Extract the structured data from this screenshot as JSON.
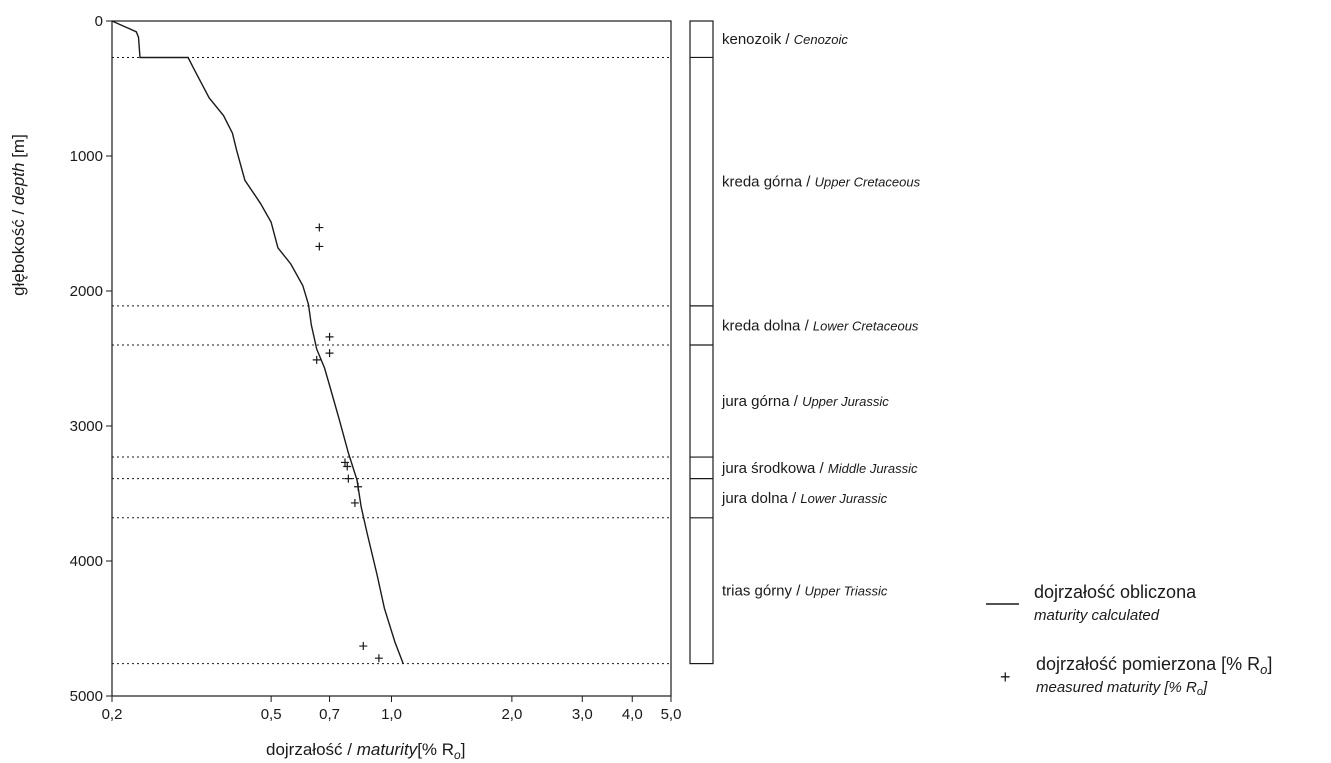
{
  "chart_data": {
    "type": "line",
    "xlabel": {
      "pl": "dojrzałość",
      "sep": " / ",
      "en": "maturity",
      "unit": "[% R",
      "unit_sub": "o",
      "unit_end": "]"
    },
    "ylabel": {
      "pl": "głębokość",
      "sep": " / ",
      "en": "depth",
      "unit": " [m]"
    },
    "x_scale": "log",
    "xlim": [
      0.2,
      5.0
    ],
    "ylim": [
      0,
      5000
    ],
    "y_inverted": true,
    "x_ticks": [
      {
        "value": 0.2,
        "label": "0,2"
      },
      {
        "value": 0.5,
        "label": "0,5"
      },
      {
        "value": 0.7,
        "label": "0,7"
      },
      {
        "value": 1.0,
        "label": "1,0"
      },
      {
        "value": 2.0,
        "label": "2,0"
      },
      {
        "value": 3.0,
        "label": "3,0"
      },
      {
        "value": 4.0,
        "label": "4,0"
      },
      {
        "value": 5.0,
        "label": "5,0"
      }
    ],
    "y_ticks": [
      {
        "value": 0,
        "label": "0"
      },
      {
        "value": 1000,
        "label": "1000"
      },
      {
        "value": 2000,
        "label": "2000"
      },
      {
        "value": 3000,
        "label": "3000"
      },
      {
        "value": 4000,
        "label": "4000"
      },
      {
        "value": 5000,
        "label": "5000"
      }
    ],
    "series": [
      {
        "name": "dojrzałość obliczona",
        "name_en": "maturity calculated",
        "kind": "line",
        "points": [
          [
            0.2,
            0
          ],
          [
            0.23,
            80
          ],
          [
            0.233,
            120
          ],
          [
            0.235,
            270
          ],
          [
            0.31,
            270
          ],
          [
            0.32,
            350
          ],
          [
            0.35,
            570
          ],
          [
            0.38,
            700
          ],
          [
            0.4,
            830
          ],
          [
            0.41,
            960
          ],
          [
            0.43,
            1180
          ],
          [
            0.47,
            1350
          ],
          [
            0.5,
            1490
          ],
          [
            0.52,
            1680
          ],
          [
            0.56,
            1800
          ],
          [
            0.6,
            1960
          ],
          [
            0.62,
            2100
          ],
          [
            0.63,
            2250
          ],
          [
            0.65,
            2430
          ],
          [
            0.68,
            2570
          ],
          [
            0.7,
            2700
          ],
          [
            0.74,
            2950
          ],
          [
            0.78,
            3200
          ],
          [
            0.82,
            3400
          ],
          [
            0.84,
            3600
          ],
          [
            0.87,
            3800
          ],
          [
            0.92,
            4100
          ],
          [
            0.96,
            4350
          ],
          [
            1.02,
            4600
          ],
          [
            1.07,
            4760
          ]
        ]
      },
      {
        "name": "dojrzałość pomierzona [% R",
        "name_sub": "o",
        "name_end": "]",
        "name_en": "measured maturity [% R",
        "name_en_sub": "o",
        "name_en_end": "]",
        "kind": "scatter",
        "points": [
          [
            0.66,
            1530
          ],
          [
            0.66,
            1670
          ],
          [
            0.7,
            2340
          ],
          [
            0.7,
            2460
          ],
          [
            0.65,
            2510
          ],
          [
            0.765,
            3270
          ],
          [
            0.775,
            3300
          ],
          [
            0.78,
            3390
          ],
          [
            0.825,
            3450
          ],
          [
            0.81,
            3570
          ],
          [
            0.85,
            4630
          ],
          [
            0.93,
            4720
          ]
        ]
      }
    ],
    "boundaries": [
      270,
      2110,
      2400,
      3230,
      3390,
      3680,
      4760
    ]
  },
  "stratigraphy": [
    {
      "pl": "kenozoik",
      "en": "Cenozoic",
      "top": 0,
      "bottom": 270
    },
    {
      "pl": "kreda górna",
      "en": "Upper Cretaceous",
      "top": 270,
      "bottom": 2110
    },
    {
      "pl": "kreda dolna",
      "en": "Lower Cretaceous",
      "top": 2110,
      "bottom": 2400
    },
    {
      "pl": "jura górna",
      "en": "Upper Jurassic",
      "top": 2400,
      "bottom": 3230
    },
    {
      "pl": "jura środkowa",
      "en": "Middle Jurassic",
      "top": 3230,
      "bottom": 3390
    },
    {
      "pl": "jura dolna",
      "en": "Lower Jurassic",
      "top": 3390,
      "bottom": 3680
    },
    {
      "pl": "trias górny",
      "en": "Upper Triassic",
      "top": 3680,
      "bottom": 4760
    }
  ],
  "legend": {
    "line_pl": "dojrzałość obliczona",
    "line_en": "maturity calculated",
    "scatter_symbol": "+",
    "scatter_pl": "dojrzałość pomierzona [% R",
    "scatter_pl_sub": "o",
    "scatter_pl_end": "]",
    "scatter_en": "measured maturity [% R",
    "scatter_en_sub": "o",
    "scatter_en_end": "]"
  },
  "colors": {
    "ink": "#1a1a1a",
    "background": "#ffffff"
  }
}
